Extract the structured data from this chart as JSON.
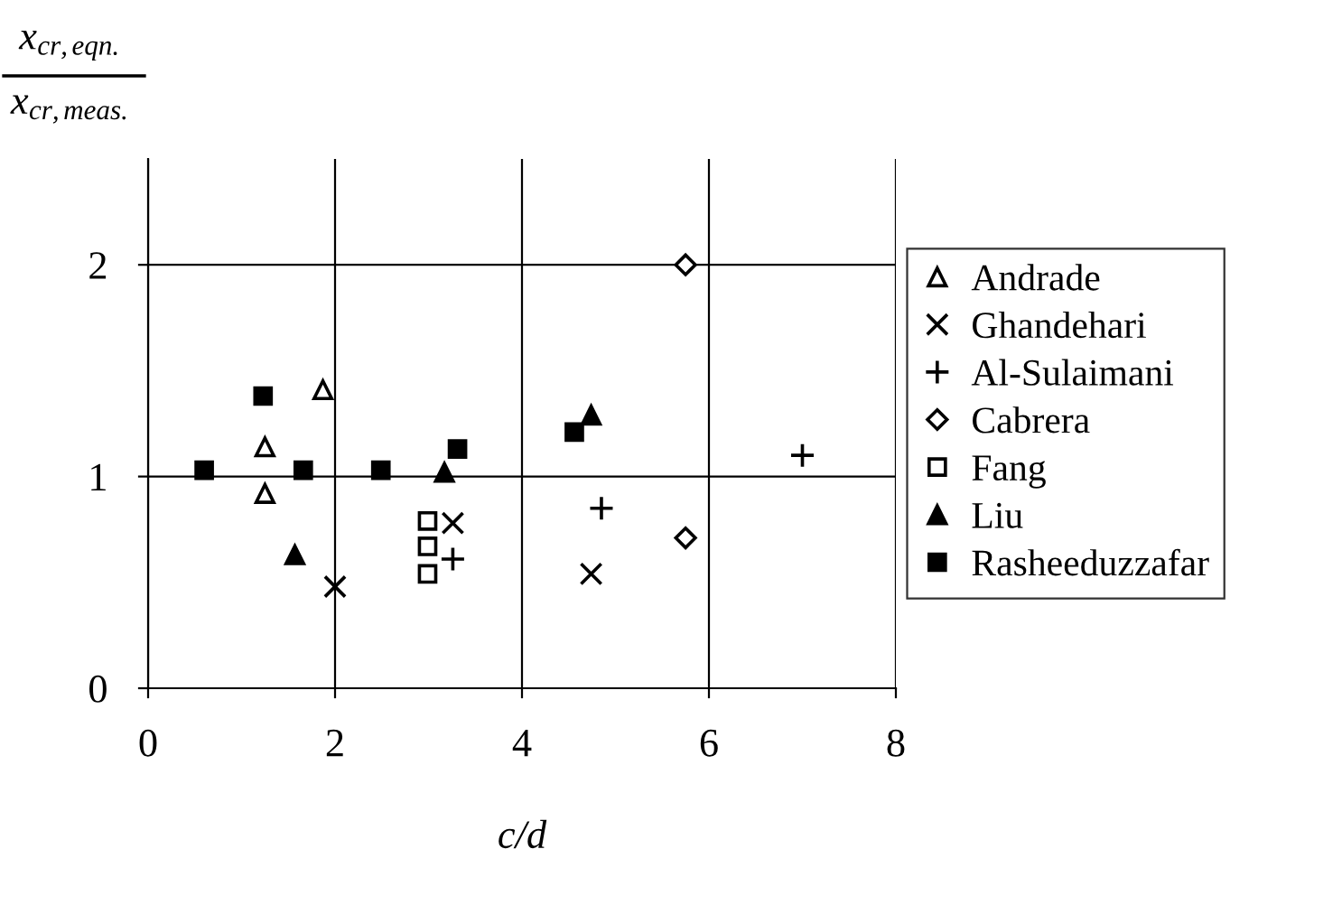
{
  "chart_data": {
    "type": "scatter",
    "xlabel": "c/d",
    "ylabel": "x$_{cr,eqn.}$\nx$_{cr,meas.}$",
    "xlim": [
      0,
      8
    ],
    "xticks": [
      0,
      2,
      4,
      6,
      8
    ],
    "ylim": [
      0,
      2.5
    ],
    "yticks": [
      0,
      1,
      2
    ],
    "grid": true,
    "legend": "right",
    "series": [
      {
        "name": "Andrade",
        "color": "#000000",
        "marker": "triangle-open",
        "x": [
          1.87,
          1.25,
          1.25
        ],
        "values": [
          1.41,
          1.14,
          0.92
        ]
      },
      {
        "name": "Ghandehari",
        "color": "#000000",
        "marker": "cross",
        "x": [
          3.26,
          2.0,
          4.74
        ],
        "values": [
          0.78,
          0.48,
          0.54
        ]
      },
      {
        "name": "Al-Sulaimani",
        "color": "#000000",
        "marker": "plus",
        "x": [
          7.0,
          4.85,
          3.26
        ],
        "values": [
          1.1,
          0.85,
          0.61
        ]
      },
      {
        "name": "Cabrera",
        "color": "#000000",
        "marker": "diamond-open",
        "x": [
          5.75,
          5.75
        ],
        "values": [
          2.0,
          0.71
        ]
      },
      {
        "name": "Fang",
        "color": "#000000",
        "marker": "square-open",
        "x": [
          2.99,
          2.99,
          2.99
        ],
        "values": [
          0.79,
          0.67,
          0.54
        ]
      },
      {
        "name": "Liu",
        "color": "#000000",
        "marker": "triangle",
        "x": [
          1.57,
          3.17,
          4.74
        ],
        "values": [
          0.63,
          1.02,
          1.29
        ]
      },
      {
        "name": "Rasheeduzzafar",
        "color": "#000000",
        "marker": "square",
        "x": [
          0.6,
          1.23,
          1.66,
          2.49,
          3.31,
          4.56
        ],
        "values": [
          1.03,
          1.38,
          1.03,
          1.03,
          1.13,
          1.21
        ]
      }
    ]
  }
}
